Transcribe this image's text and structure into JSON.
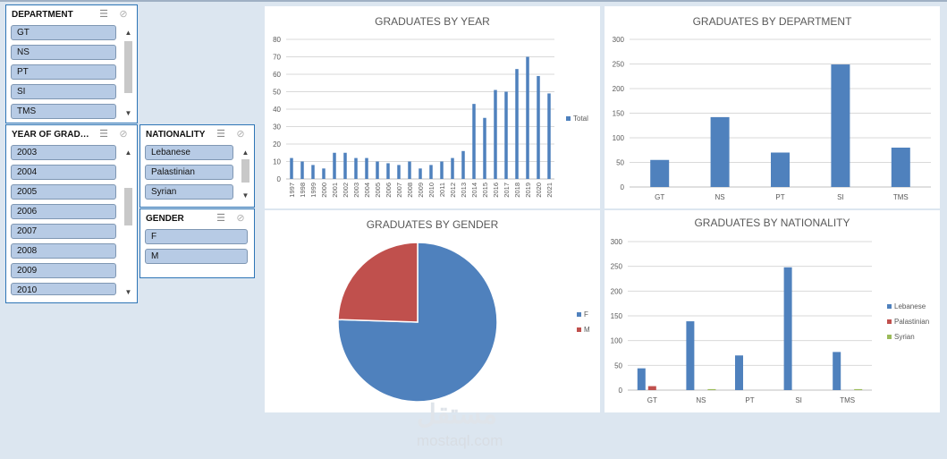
{
  "slicers": {
    "department": {
      "title": "DEPARTMENT",
      "items": [
        "GT",
        "NS",
        "PT",
        "SI",
        "TMS"
      ]
    },
    "year": {
      "title": "YEAR OF GRADUA...",
      "items": [
        "2003",
        "2004",
        "2005",
        "2006",
        "2007",
        "2008",
        "2009",
        "2010"
      ]
    },
    "nationality": {
      "title": "NATIONALITY",
      "items": [
        "Lebanese",
        "Palastinian",
        "Syrian"
      ]
    },
    "gender": {
      "title": "GENDER",
      "items": [
        "F",
        "M"
      ]
    }
  },
  "icons": {
    "multiselect": "multi-select-icon",
    "clear": "clear-filter-icon",
    "up": "scroll-up-icon",
    "down": "scroll-down-icon"
  },
  "colors": {
    "blue": "#4f81bd",
    "red": "#c0504d",
    "green": "#9bbb59",
    "axis": "#595959",
    "grid": "#d9d9d9"
  },
  "watermark": {
    "arabic": "مستقل",
    "latin": "mostaql.com"
  },
  "chart_data": [
    {
      "id": "year",
      "type": "bar",
      "title": "GRADUATES BY YEAR",
      "categories": [
        "1997",
        "1998",
        "1999",
        "2000",
        "2001",
        "2002",
        "2003",
        "2004",
        "2005",
        "2006",
        "2007",
        "2008",
        "2009",
        "2010",
        "2011",
        "2012",
        "2013",
        "2014",
        "2015",
        "2016",
        "2017",
        "2018",
        "2019",
        "2020",
        "2021"
      ],
      "series": [
        {
          "name": "Total",
          "values": [
            12,
            10,
            8,
            6,
            15,
            15,
            12,
            12,
            10,
            9,
            8,
            10,
            6,
            8,
            10,
            12,
            16,
            43,
            35,
            51,
            50,
            63,
            70,
            59,
            49
          ]
        }
      ],
      "ylim": [
        0,
        80
      ],
      "yticks": [
        0,
        10,
        20,
        30,
        40,
        50,
        60,
        70,
        80
      ],
      "legend": "right"
    },
    {
      "id": "dept",
      "type": "bar",
      "title": "GRADUATES BY DEPARTMENT",
      "categories": [
        "GT",
        "NS",
        "PT",
        "SI",
        "TMS"
      ],
      "series": [
        {
          "name": "Total",
          "values": [
            55,
            142,
            70,
            249,
            80
          ]
        }
      ],
      "ylim": [
        0,
        300
      ],
      "yticks": [
        0,
        50,
        100,
        150,
        200,
        250,
        300
      ]
    },
    {
      "id": "gender",
      "type": "pie",
      "title": "GRADUATES BY GENDER",
      "categories": [
        "F",
        "M"
      ],
      "values": [
        75.5,
        24.5
      ],
      "legend": "right"
    },
    {
      "id": "nat",
      "type": "bar",
      "title": "GRADUATES BY NATIONALITY",
      "categories": [
        "GT",
        "NS",
        "PT",
        "SI",
        "TMS"
      ],
      "series": [
        {
          "name": "Lebanese",
          "values": [
            44,
            139,
            70,
            248,
            77
          ]
        },
        {
          "name": "Palastinian",
          "values": [
            8,
            0,
            0,
            0,
            0
          ]
        },
        {
          "name": "Syrian",
          "values": [
            0,
            2,
            0,
            0,
            2
          ]
        }
      ],
      "ylim": [
        0,
        300
      ],
      "yticks": [
        0,
        50,
        100,
        150,
        200,
        250,
        300
      ],
      "legend": "right"
    }
  ]
}
